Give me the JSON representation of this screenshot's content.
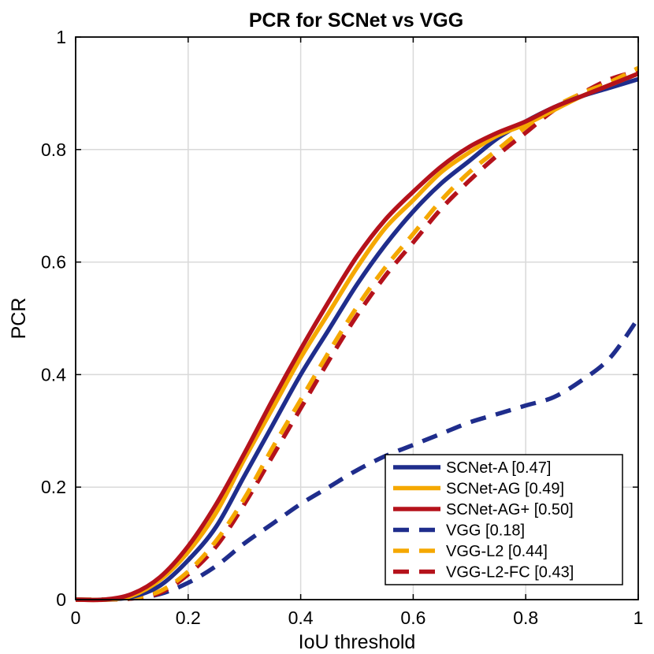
{
  "chart_data": {
    "type": "line",
    "title": "PCR for SCNet vs VGG",
    "xlabel": "IoU threshold",
    "ylabel": "PCR",
    "xlim": [
      0,
      1
    ],
    "ylim": [
      0,
      1
    ],
    "xticks": [
      "0",
      "0.2",
      "0.4",
      "0.6",
      "0.8",
      "1"
    ],
    "yticks": [
      "0",
      "0.2",
      "0.4",
      "0.6",
      "0.8",
      "1"
    ],
    "grid": true,
    "legend_position": "bottom-right",
    "x": [
      0,
      0.05,
      0.1,
      0.15,
      0.2,
      0.25,
      0.3,
      0.35,
      0.4,
      0.45,
      0.5,
      0.55,
      0.6,
      0.65,
      0.7,
      0.75,
      0.8,
      0.85,
      0.9,
      0.95,
      1.0
    ],
    "series": [
      {
        "name": "SCNet-A [0.47]",
        "color": "#1f2d8c",
        "dash": "solid",
        "values": [
          0,
          0,
          0.005,
          0.025,
          0.07,
          0.13,
          0.22,
          0.31,
          0.4,
          0.48,
          0.56,
          0.63,
          0.69,
          0.74,
          0.78,
          0.82,
          0.85,
          0.875,
          0.895,
          0.91,
          0.925
        ]
      },
      {
        "name": "SCNet-AG [0.49]",
        "color": "#f5a800",
        "dash": "solid",
        "values": [
          0,
          0,
          0.007,
          0.035,
          0.085,
          0.155,
          0.25,
          0.34,
          0.43,
          0.51,
          0.59,
          0.66,
          0.71,
          0.76,
          0.795,
          0.825,
          0.845,
          0.87,
          0.895,
          0.915,
          0.935
        ]
      },
      {
        "name": "SCNet-AG+ [0.50]",
        "color": "#b5121b",
        "dash": "solid",
        "values": [
          0,
          0,
          0.01,
          0.04,
          0.095,
          0.17,
          0.26,
          0.355,
          0.445,
          0.53,
          0.61,
          0.675,
          0.725,
          0.77,
          0.805,
          0.83,
          0.85,
          0.875,
          0.895,
          0.915,
          0.935
        ]
      },
      {
        "name": "VGG [0.18]",
        "color": "#1f2d8c",
        "dash": "dashed",
        "values": [
          0,
          0,
          0.002,
          0.01,
          0.03,
          0.06,
          0.1,
          0.135,
          0.17,
          0.2,
          0.23,
          0.255,
          0.275,
          0.295,
          0.315,
          0.33,
          0.345,
          0.36,
          0.39,
          0.43,
          0.5
        ]
      },
      {
        "name": "VGG-L2 [0.44]",
        "color": "#f5a800",
        "dash": "dashed",
        "values": [
          0,
          0,
          0.003,
          0.015,
          0.05,
          0.105,
          0.18,
          0.27,
          0.355,
          0.44,
          0.52,
          0.59,
          0.65,
          0.71,
          0.76,
          0.8,
          0.84,
          0.875,
          0.9,
          0.92,
          0.945
        ]
      },
      {
        "name": "VGG-L2-FC [0.43]",
        "color": "#b5121b",
        "dash": "dashed",
        "values": [
          0,
          0,
          0.002,
          0.012,
          0.045,
          0.095,
          0.17,
          0.255,
          0.34,
          0.425,
          0.505,
          0.575,
          0.635,
          0.695,
          0.745,
          0.79,
          0.83,
          0.87,
          0.9,
          0.925,
          0.94
        ]
      }
    ]
  }
}
